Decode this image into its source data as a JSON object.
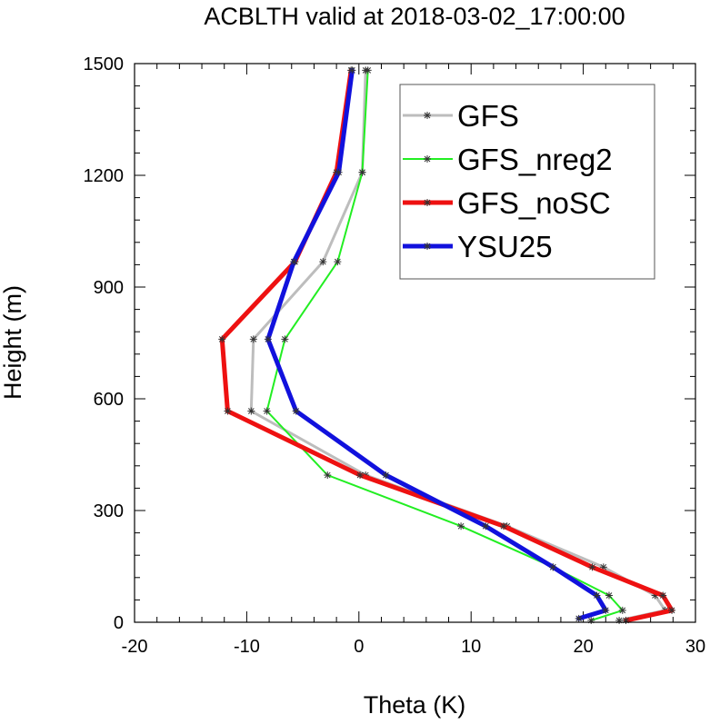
{
  "chart_data": {
    "type": "line",
    "title": "ACBLTH valid at 2018-03-02_17:00:00",
    "xlabel": "Theta (K)",
    "ylabel": "Height (m)",
    "xlim": [
      -20,
      30
    ],
    "ylim": [
      0,
      1500
    ],
    "xticks": [
      -20,
      -10,
      0,
      10,
      20,
      30
    ],
    "yticks": [
      0,
      300,
      600,
      900,
      1200,
      1500
    ],
    "legend_position": "top-right",
    "grid": false,
    "series": [
      {
        "name": "GFS",
        "color": "#bdbdbd",
        "marker": "asterisk",
        "points": [
          [
            23.2,
            5
          ],
          [
            27.3,
            32
          ],
          [
            26.4,
            72
          ],
          [
            21.8,
            148
          ],
          [
            13.2,
            258
          ],
          [
            0.6,
            395
          ],
          [
            -9.6,
            567
          ],
          [
            -9.4,
            760
          ],
          [
            -3.2,
            968
          ],
          [
            0.3,
            1208
          ],
          [
            0.6,
            1482
          ]
        ]
      },
      {
        "name": "GFS_nreg2",
        "color": "#22ee22",
        "marker": "asterisk",
        "points": [
          [
            20.7,
            5
          ],
          [
            23.5,
            32
          ],
          [
            22.3,
            72
          ],
          [
            17.3,
            148
          ],
          [
            9.1,
            258
          ],
          [
            -2.8,
            395
          ],
          [
            -8.2,
            567
          ],
          [
            -6.6,
            760
          ],
          [
            -1.9,
            968
          ],
          [
            0.3,
            1208
          ],
          [
            0.8,
            1482
          ]
        ]
      },
      {
        "name": "GFS_noSC",
        "color": "#ee1111",
        "marker": "asterisk",
        "points": [
          [
            23.8,
            5
          ],
          [
            27.9,
            32
          ],
          [
            27.1,
            72
          ],
          [
            20.8,
            148
          ],
          [
            12.9,
            258
          ],
          [
            0.1,
            395
          ],
          [
            -11.7,
            567
          ],
          [
            -12.2,
            760
          ],
          [
            -5.7,
            968
          ],
          [
            -2.0,
            1208
          ],
          [
            -0.7,
            1482
          ]
        ]
      },
      {
        "name": "YSU25",
        "color": "#1111dd",
        "marker": "asterisk",
        "points": [
          [
            19.6,
            10
          ],
          [
            22.0,
            32
          ],
          [
            21.2,
            72
          ],
          [
            17.3,
            148
          ],
          [
            11.3,
            258
          ],
          [
            2.4,
            395
          ],
          [
            -5.6,
            567
          ],
          [
            -8.1,
            760
          ],
          [
            -5.8,
            968
          ],
          [
            -1.8,
            1208
          ],
          [
            -0.6,
            1482
          ]
        ]
      }
    ]
  }
}
